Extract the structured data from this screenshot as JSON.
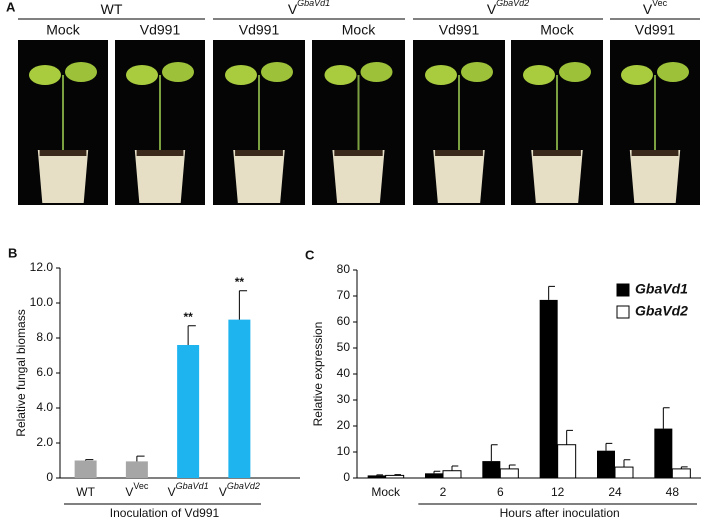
{
  "panel_a": {
    "label": "A",
    "groups": [
      {
        "name": "WT",
        "treatments": [
          "Mock",
          "Vd991"
        ]
      },
      {
        "name": "V",
        "sup": "GbaVd1",
        "treatments": [
          "Vd991",
          "Mock"
        ]
      },
      {
        "name": "V",
        "sup": "GbaVd2",
        "treatments": [
          "Vd991",
          "Mock"
        ]
      },
      {
        "name": "V",
        "sup": "Vec",
        "treatments": [
          "Vd991"
        ]
      }
    ]
  },
  "chart_data": [
    {
      "type": "bar",
      "panel": "B",
      "categories": [
        "WT",
        "V",
        "V",
        "V"
      ],
      "category_sups": [
        null,
        "Vec",
        "GbaVd1",
        "GbaVd2"
      ],
      "values": [
        1.0,
        0.95,
        7.6,
        9.05
      ],
      "errors": [
        0.05,
        0.3,
        1.1,
        1.65
      ],
      "colors": [
        "#a6a6a6",
        "#a6a6a6",
        "#1eb4f0",
        "#1eb4f0"
      ],
      "significance": [
        null,
        null,
        "**",
        "**"
      ],
      "ylabel": "Relative fungal biomass",
      "xlabel": "Inoculation of Vd991",
      "ylim": [
        0,
        12
      ],
      "yticks": [
        0,
        {
          "value": 2,
          "label": "2.0"
        },
        {
          "value": 4,
          "label": "4.0"
        },
        {
          "value": 6,
          "label": "6.0"
        },
        {
          "value": 8,
          "label": "8.0"
        },
        {
          "value": 10,
          "label": "10.0"
        },
        {
          "value": 12,
          "label": "12.0"
        }
      ]
    },
    {
      "type": "bar",
      "panel": "C",
      "categories": [
        "Mock",
        "2",
        "6",
        "12",
        "24",
        "48"
      ],
      "series": [
        {
          "name": "GbaVd1",
          "color": "#000000",
          "values": [
            1,
            1.8,
            6.5,
            68.5,
            10.5,
            19
          ],
          "errors": [
            0.2,
            0.8,
            6.3,
            5.2,
            2.8,
            8
          ]
        },
        {
          "name": "GbaVd2",
          "color": "#ffffff",
          "values": [
            1,
            2.8,
            3.5,
            12.8,
            4.2,
            3.5
          ],
          "errors": [
            0.3,
            1.8,
            1.5,
            5.5,
            2.8,
            0.8
          ]
        }
      ],
      "ylabel": "Relative expression",
      "xlabel": "Hours after inoculation",
      "ylim": [
        0,
        80
      ],
      "yticks": [
        0,
        10,
        20,
        30,
        40,
        50,
        60,
        70,
        80
      ],
      "legend": "upper right"
    }
  ]
}
